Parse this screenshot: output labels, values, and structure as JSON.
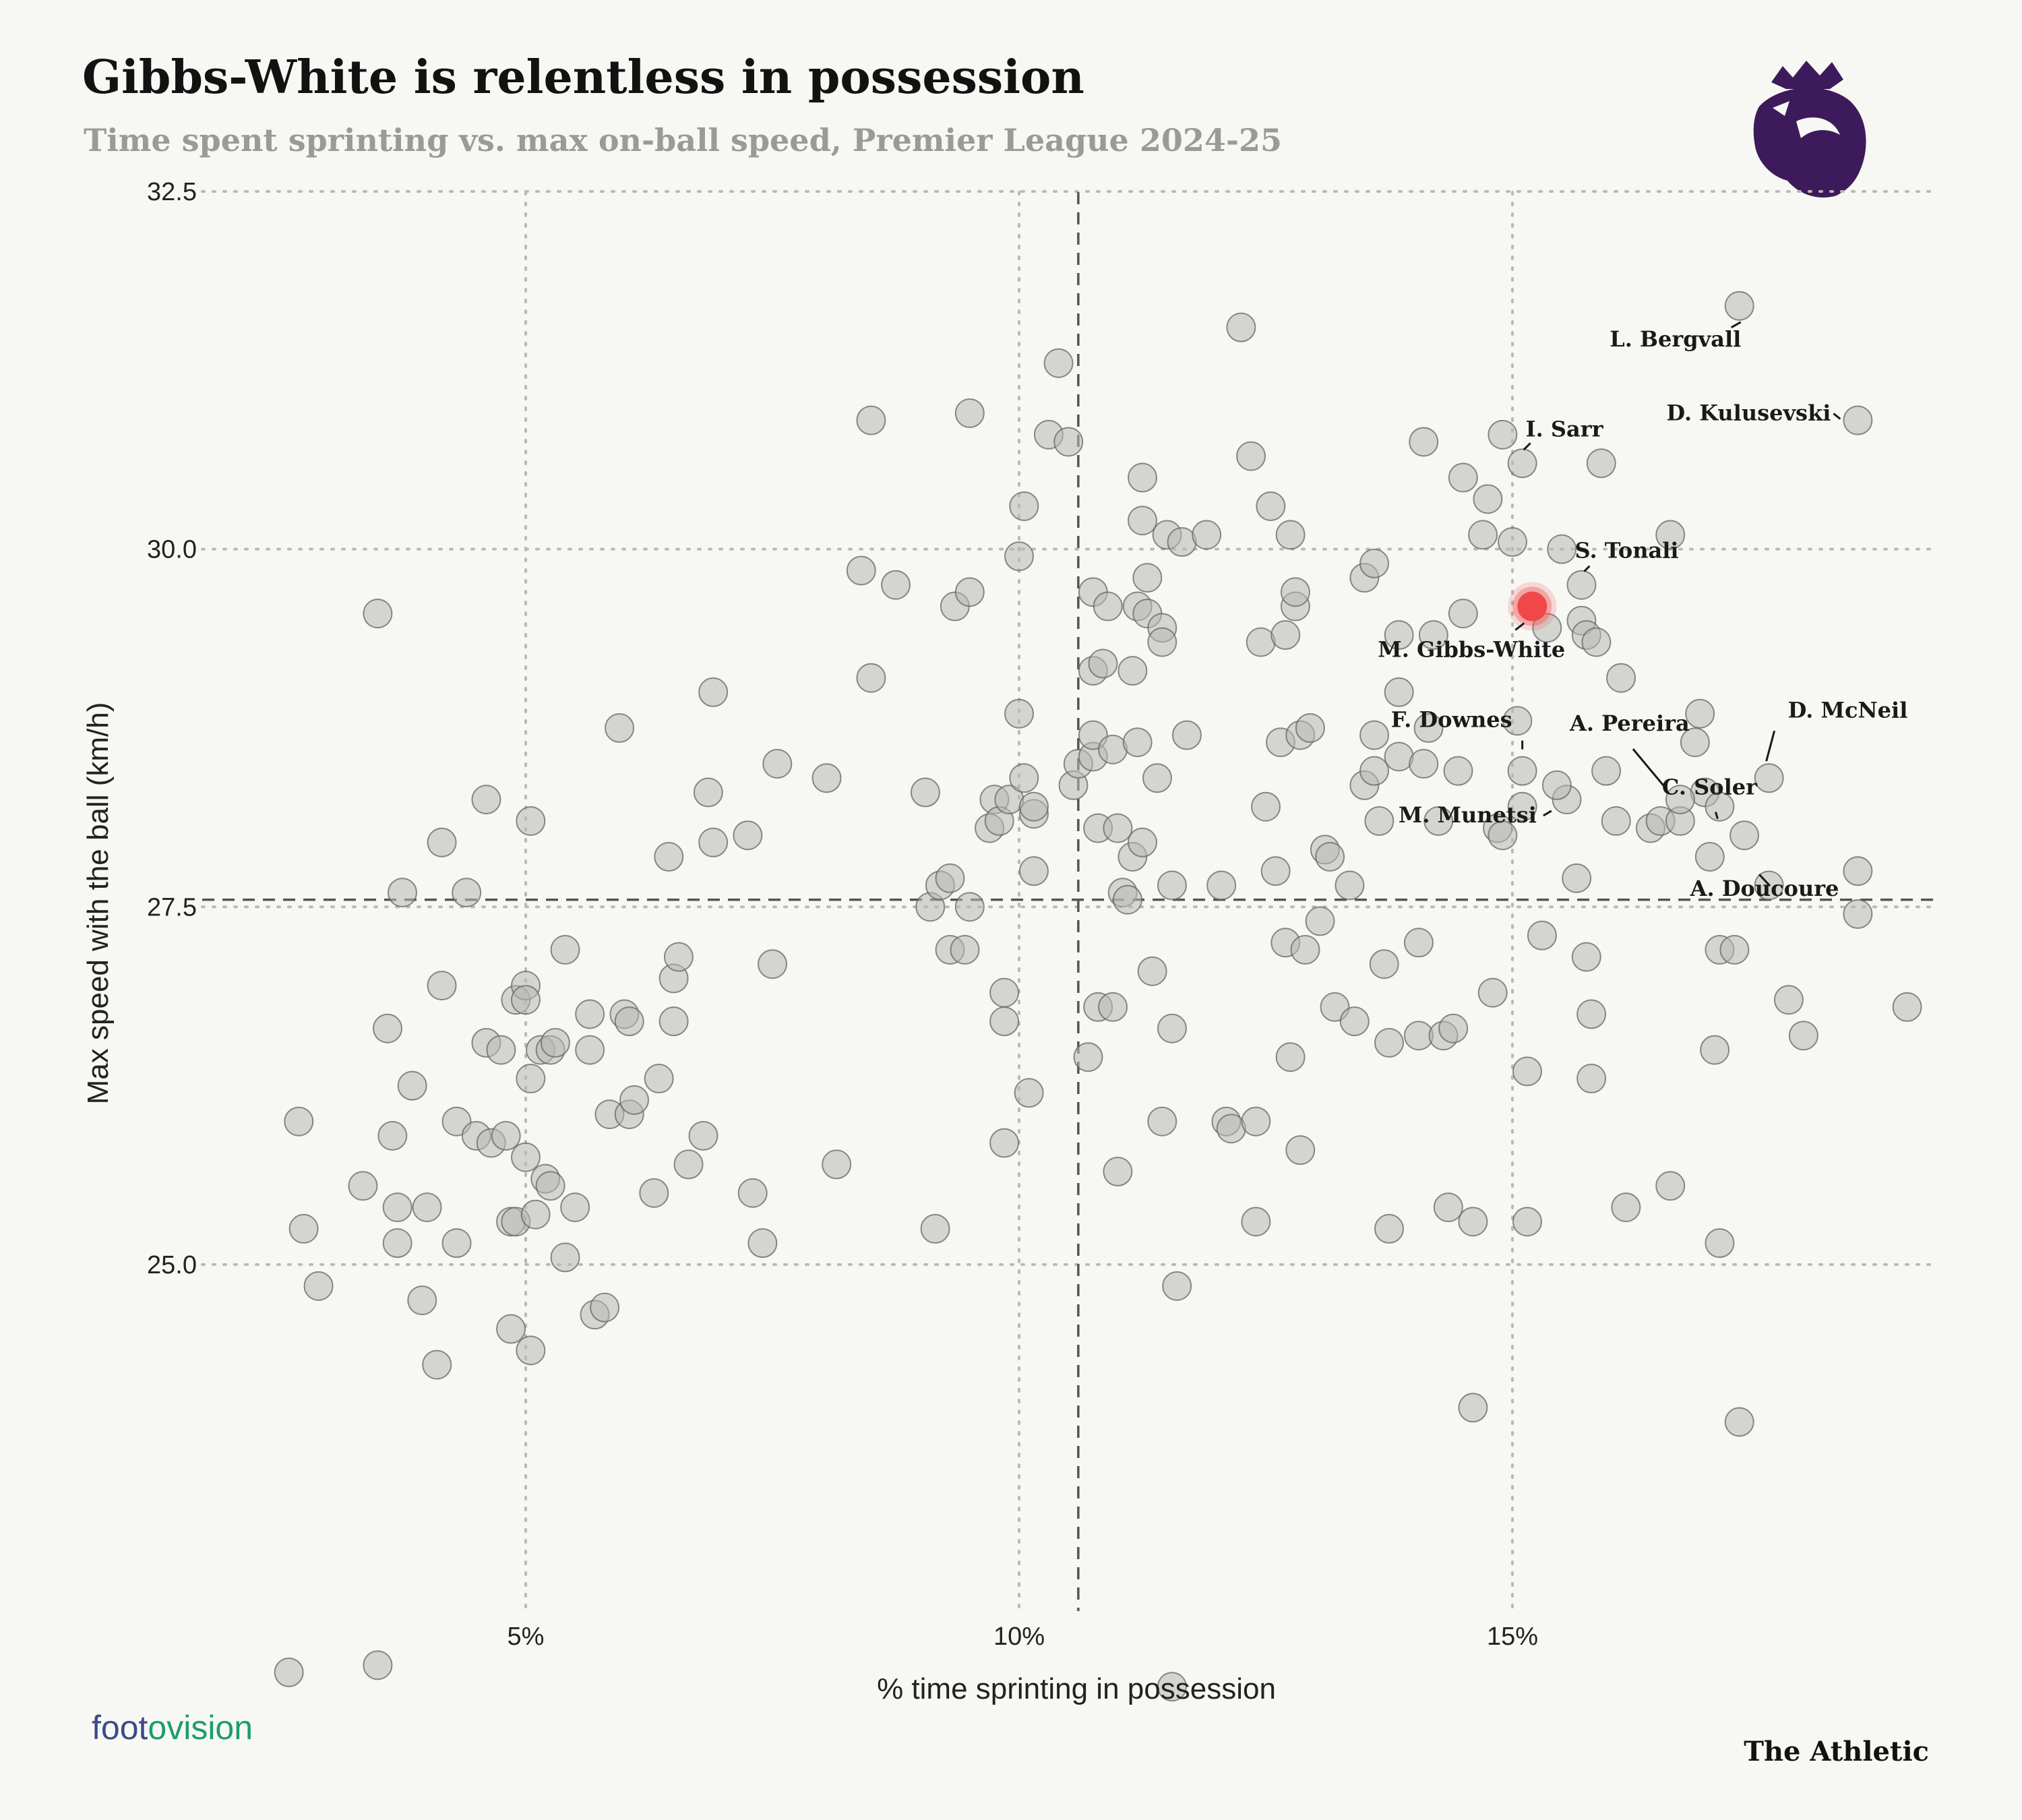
{
  "header": {
    "title": "Gibbs-White is relentless in possession",
    "subtitle": "Time spent sprinting vs. max on-ball speed, Premier League 2024-25"
  },
  "logos": {
    "league_logo": "premier-league-lion-icon",
    "league_color": "#3d1a5b",
    "data_provider": "footovision",
    "data_provider_parts": [
      "foot",
      "o",
      "vision"
    ],
    "data_provider_colors": [
      "#3a4a8a",
      "#1a9e6a"
    ],
    "publisher": "The Athletic"
  },
  "colors": {
    "background": "#f7f7f3",
    "highlight": "#f04848",
    "dot_fill": "#b8b8b4",
    "dot_stroke": "#666666"
  },
  "chart_data": {
    "type": "scatter",
    "title": "Gibbs-White is relentless in possession",
    "subtitle": "Time spent sprinting vs. max on-ball speed, Premier League 2024-25",
    "xlabel": "% time sprinting in possession",
    "ylabel": "Max speed with the ball (km/h)",
    "xlim": [
      2.4,
      19.6
    ],
    "ylim": [
      21.9,
      32.5
    ],
    "xticks": [
      5,
      10,
      15
    ],
    "xtick_labels": [
      "5%",
      "10%",
      "15%"
    ],
    "yticks": [
      25.0,
      27.5,
      30.0,
      32.5
    ],
    "ytick_labels": [
      "25.0",
      "27.5",
      "30.0",
      "32.5"
    ],
    "grid": true,
    "reference_lines": {
      "x_average": 10.6,
      "y_average": 27.55
    },
    "highlight": {
      "name": "M. Gibbs-White",
      "x": 15.2,
      "y": 29.6
    },
    "labeled_points": [
      {
        "name": "L. Bergvall",
        "x": 17.3,
        "y": 31.7
      },
      {
        "name": "D. Kulusevski",
        "x": 18.5,
        "y": 30.9
      },
      {
        "name": "I. Sarr",
        "x": 15.1,
        "y": 30.6
      },
      {
        "name": "S. Tonali",
        "x": 15.7,
        "y": 29.75
      },
      {
        "name": "M. Gibbs-White",
        "x": 15.2,
        "y": 29.6
      },
      {
        "name": "A. Pereira",
        "x": 16.7,
        "y": 28.25
      },
      {
        "name": "D. McNeil",
        "x": 17.6,
        "y": 28.4
      },
      {
        "name": "F. Downes",
        "x": 15.1,
        "y": 28.45
      },
      {
        "name": "C. Soler",
        "x": 17.1,
        "y": 28.2
      },
      {
        "name": "M. Munetsi",
        "x": 15.45,
        "y": 28.35
      },
      {
        "name": "A. Doucoure",
        "x": 17.35,
        "y": 28.0
      }
    ],
    "points": [
      [
        2.6,
        22.15
      ],
      [
        2.7,
        26.0
      ],
      [
        2.75,
        25.25
      ],
      [
        2.9,
        24.85
      ],
      [
        3.35,
        25.55
      ],
      [
        3.5,
        29.55
      ],
      [
        3.5,
        22.2
      ],
      [
        3.6,
        26.65
      ],
      [
        3.65,
        25.9
      ],
      [
        3.7,
        25.4
      ],
      [
        3.7,
        25.15
      ],
      [
        3.75,
        27.6
      ],
      [
        3.85,
        26.25
      ],
      [
        3.95,
        24.75
      ],
      [
        4.0,
        25.4
      ],
      [
        4.1,
        24.3
      ],
      [
        4.15,
        27.95
      ],
      [
        4.15,
        26.95
      ],
      [
        4.3,
        26.0
      ],
      [
        4.3,
        25.15
      ],
      [
        4.4,
        27.6
      ],
      [
        4.5,
        25.9
      ],
      [
        4.6,
        28.25
      ],
      [
        4.6,
        26.55
      ],
      [
        4.65,
        25.85
      ],
      [
        4.75,
        26.5
      ],
      [
        4.8,
        25.9
      ],
      [
        4.85,
        25.3
      ],
      [
        4.85,
        24.55
      ],
      [
        4.9,
        26.85
      ],
      [
        4.9,
        25.3
      ],
      [
        5.0,
        26.95
      ],
      [
        5.0,
        26.85
      ],
      [
        5.0,
        25.75
      ],
      [
        5.05,
        28.1
      ],
      [
        5.05,
        26.3
      ],
      [
        5.05,
        24.4
      ],
      [
        5.1,
        25.35
      ],
      [
        5.15,
        26.5
      ],
      [
        5.2,
        25.6
      ],
      [
        5.25,
        26.5
      ],
      [
        5.25,
        25.55
      ],
      [
        5.3,
        26.55
      ],
      [
        5.4,
        27.2
      ],
      [
        5.4,
        25.05
      ],
      [
        5.5,
        25.4
      ],
      [
        5.65,
        26.75
      ],
      [
        5.65,
        26.5
      ],
      [
        5.7,
        24.65
      ],
      [
        5.8,
        24.7
      ],
      [
        5.85,
        26.05
      ],
      [
        5.95,
        28.75
      ],
      [
        6.0,
        26.75
      ],
      [
        6.05,
        26.7
      ],
      [
        6.05,
        26.05
      ],
      [
        6.1,
        26.15
      ],
      [
        6.3,
        25.5
      ],
      [
        6.35,
        26.3
      ],
      [
        6.45,
        27.85
      ],
      [
        6.5,
        27.0
      ],
      [
        6.5,
        26.7
      ],
      [
        6.55,
        27.15
      ],
      [
        6.65,
        25.7
      ],
      [
        6.8,
        25.9
      ],
      [
        6.85,
        28.3
      ],
      [
        6.9,
        29.0
      ],
      [
        6.9,
        27.95
      ],
      [
        7.25,
        28.0
      ],
      [
        7.3,
        25.5
      ],
      [
        7.4,
        25.15
      ],
      [
        7.5,
        27.1
      ],
      [
        7.55,
        28.5
      ],
      [
        8.05,
        28.4
      ],
      [
        8.15,
        25.7
      ],
      [
        8.4,
        29.85
      ],
      [
        8.5,
        29.1
      ],
      [
        8.5,
        30.9
      ],
      [
        8.75,
        29.75
      ],
      [
        9.05,
        28.3
      ],
      [
        9.1,
        27.5
      ],
      [
        9.15,
        25.25
      ],
      [
        9.2,
        27.65
      ],
      [
        9.3,
        27.2
      ],
      [
        9.3,
        27.7
      ],
      [
        9.35,
        29.6
      ],
      [
        9.45,
        27.2
      ],
      [
        9.5,
        27.5
      ],
      [
        9.5,
        29.7
      ],
      [
        9.5,
        30.95
      ],
      [
        9.7,
        28.05
      ],
      [
        9.75,
        28.25
      ],
      [
        9.8,
        28.1
      ],
      [
        9.85,
        26.9
      ],
      [
        9.85,
        26.7
      ],
      [
        9.85,
        25.85
      ],
      [
        9.9,
        28.25
      ],
      [
        10.0,
        28.85
      ],
      [
        10.0,
        29.95
      ],
      [
        10.05,
        28.4
      ],
      [
        10.05,
        30.3
      ],
      [
        10.1,
        26.2
      ],
      [
        10.15,
        28.15
      ],
      [
        10.15,
        28.2
      ],
      [
        10.15,
        27.75
      ],
      [
        10.3,
        30.8
      ],
      [
        10.4,
        31.3
      ],
      [
        10.5,
        30.75
      ],
      [
        10.55,
        28.35
      ],
      [
        10.6,
        28.5
      ],
      [
        10.7,
        26.45
      ],
      [
        10.75,
        29.15
      ],
      [
        10.75,
        28.55
      ],
      [
        10.75,
        28.7
      ],
      [
        10.75,
        29.7
      ],
      [
        10.8,
        28.05
      ],
      [
        10.8,
        26.8
      ],
      [
        10.85,
        29.2
      ],
      [
        10.9,
        29.6
      ],
      [
        10.95,
        28.6
      ],
      [
        10.95,
        26.8
      ],
      [
        11.0,
        28.05
      ],
      [
        11.0,
        25.65
      ],
      [
        11.05,
        27.6
      ],
      [
        11.1,
        27.55
      ],
      [
        11.15,
        27.85
      ],
      [
        11.15,
        29.15
      ],
      [
        11.2,
        29.6
      ],
      [
        11.2,
        28.65
      ],
      [
        11.25,
        27.95
      ],
      [
        11.25,
        30.2
      ],
      [
        11.25,
        30.5
      ],
      [
        11.3,
        29.55
      ],
      [
        11.3,
        29.8
      ],
      [
        11.35,
        27.05
      ],
      [
        11.4,
        28.4
      ],
      [
        11.45,
        29.45
      ],
      [
        11.45,
        29.35
      ],
      [
        11.45,
        26.0
      ],
      [
        11.5,
        30.1
      ],
      [
        11.55,
        27.65
      ],
      [
        11.55,
        26.65
      ],
      [
        11.6,
        24.85
      ],
      [
        11.65,
        30.05
      ],
      [
        11.7,
        28.7
      ],
      [
        11.9,
        30.1
      ],
      [
        12.05,
        27.65
      ],
      [
        12.1,
        26.0
      ],
      [
        12.15,
        25.95
      ],
      [
        12.25,
        31.55
      ],
      [
        12.35,
        30.65
      ],
      [
        12.4,
        26.0
      ],
      [
        12.45,
        29.35
      ],
      [
        12.5,
        28.2
      ],
      [
        12.55,
        30.3
      ],
      [
        12.6,
        27.75
      ],
      [
        12.65,
        28.65
      ],
      [
        12.7,
        29.4
      ],
      [
        12.7,
        27.25
      ],
      [
        12.75,
        30.1
      ],
      [
        12.75,
        26.45
      ],
      [
        12.8,
        29.6
      ],
      [
        12.8,
        29.7
      ],
      [
        12.85,
        28.7
      ],
      [
        12.85,
        25.8
      ],
      [
        12.9,
        27.2
      ],
      [
        12.95,
        28.75
      ],
      [
        13.05,
        27.4
      ],
      [
        13.1,
        27.9
      ],
      [
        13.15,
        27.85
      ],
      [
        13.2,
        26.8
      ],
      [
        13.35,
        27.65
      ],
      [
        13.4,
        26.7
      ],
      [
        13.5,
        29.8
      ],
      [
        13.5,
        28.35
      ],
      [
        13.6,
        29.9
      ],
      [
        13.6,
        28.7
      ],
      [
        13.6,
        28.45
      ],
      [
        13.65,
        28.1
      ],
      [
        13.7,
        27.1
      ],
      [
        13.75,
        25.25
      ],
      [
        13.75,
        26.55
      ],
      [
        13.85,
        29.4
      ],
      [
        13.85,
        29.0
      ],
      [
        13.85,
        28.55
      ],
      [
        14.05,
        26.6
      ],
      [
        14.05,
        27.25
      ],
      [
        14.1,
        30.75
      ],
      [
        14.1,
        28.5
      ],
      [
        14.15,
        28.75
      ],
      [
        14.2,
        29.4
      ],
      [
        14.25,
        28.1
      ],
      [
        14.3,
        26.6
      ],
      [
        14.35,
        25.4
      ],
      [
        14.4,
        26.65
      ],
      [
        14.45,
        28.45
      ],
      [
        14.5,
        29.55
      ],
      [
        14.5,
        30.5
      ],
      [
        14.6,
        24.0
      ],
      [
        14.6,
        25.3
      ],
      [
        14.7,
        30.1
      ],
      [
        14.75,
        30.35
      ],
      [
        14.8,
        26.9
      ],
      [
        14.85,
        28.05
      ],
      [
        14.9,
        28.0
      ],
      [
        14.9,
        30.8
      ],
      [
        15.0,
        30.05
      ],
      [
        15.05,
        28.8
      ],
      [
        15.1,
        28.2
      ],
      [
        15.15,
        26.35
      ],
      [
        15.15,
        25.3
      ],
      [
        15.3,
        27.3
      ],
      [
        15.35,
        29.45
      ],
      [
        15.5,
        30.0
      ],
      [
        15.55,
        28.25
      ],
      [
        15.65,
        27.7
      ],
      [
        15.7,
        29.5
      ],
      [
        15.75,
        29.4
      ],
      [
        15.75,
        27.15
      ],
      [
        15.8,
        26.75
      ],
      [
        15.8,
        26.3
      ],
      [
        15.85,
        29.35
      ],
      [
        15.9,
        30.6
      ],
      [
        15.95,
        28.45
      ],
      [
        16.05,
        28.1
      ],
      [
        16.1,
        29.1
      ],
      [
        16.15,
        25.4
      ],
      [
        16.4,
        28.05
      ],
      [
        16.5,
        28.1
      ],
      [
        16.6,
        30.1
      ],
      [
        16.6,
        25.55
      ],
      [
        16.7,
        28.1
      ],
      [
        16.85,
        28.65
      ],
      [
        16.9,
        28.85
      ],
      [
        16.95,
        28.3
      ],
      [
        17.0,
        27.85
      ],
      [
        17.05,
        26.5
      ],
      [
        17.1,
        27.2
      ],
      [
        17.1,
        25.15
      ],
      [
        17.25,
        27.2
      ],
      [
        17.3,
        23.9
      ],
      [
        17.6,
        27.65
      ],
      [
        17.8,
        26.85
      ],
      [
        17.95,
        26.6
      ],
      [
        18.5,
        27.75
      ],
      [
        18.5,
        27.45
      ],
      [
        19.0,
        26.8
      ],
      [
        11.55,
        22.05
      ],
      [
        12.4,
        25.3
      ]
    ]
  }
}
